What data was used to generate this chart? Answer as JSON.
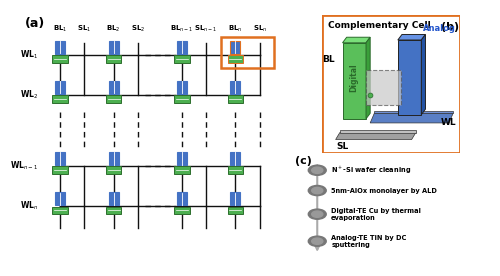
{
  "panel_a_label": "(a)",
  "panel_b_label": "(b)",
  "panel_c_label": "(c)",
  "bl_labels": [
    "BL$_1$",
    "SL$_1$",
    "BL$_2$",
    "SL$_2$",
    "BL$_{n-1}$",
    "SL$_{n-1}$",
    "BL$_n$",
    "SL$_n$"
  ],
  "wl_labels": [
    "WL$_1$",
    "WL$_2$",
    "WL$_{n-1}$",
    "WL$_n$"
  ],
  "complementary_cell_title": "Complementary Cell",
  "analog_label": "Analog",
  "digital_label": "Digital",
  "bl_label": "BL",
  "sl_label": "SL",
  "wl_label": "WL",
  "process_steps": [
    "N$^+$-Si wafer cleaning",
    "5nm-AlOx monolayer by ALD",
    "Digital-TE Cu by thermal\nevaporation",
    "Analog-TE TiN by DC\nsputtering"
  ],
  "orange_border": "#E07020",
  "green_color": "#4CAF50",
  "blue_color": "#4472C4",
  "dark_color": "#111111",
  "gray_color": "#888888"
}
